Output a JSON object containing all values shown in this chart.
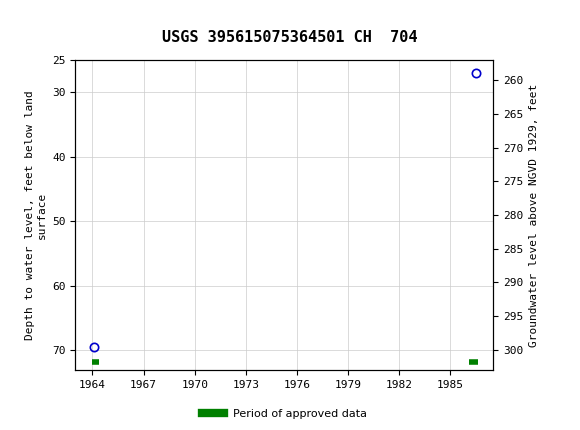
{
  "title": "USGS 395615075364501 CH  704",
  "header_bg_color": "#1a6b3c",
  "header_text_color": "#ffffff",
  "plot_bg_color": "#ffffff",
  "grid_color": "#cccccc",
  "ylabel_left": "Depth to water level, feet below land\nsurface",
  "ylabel_right": "Groundwater level above NGVD 1929, feet",
  "xlim": [
    1963,
    1987.5
  ],
  "ylim_left": [
    25,
    73
  ],
  "ylim_right": [
    257,
    303
  ],
  "xticks": [
    1964,
    1967,
    1970,
    1973,
    1976,
    1979,
    1982,
    1985
  ],
  "yticks_left": [
    25,
    30,
    40,
    50,
    60,
    70
  ],
  "yticks_right": [
    260,
    265,
    270,
    275,
    280,
    285,
    290,
    295,
    300
  ],
  "data_points": [
    {
      "x": 1964.1,
      "y_left": 69.5,
      "color": "#0000cc",
      "marker": "o",
      "fillstyle": "none",
      "markersize": 6
    },
    {
      "x": 1986.5,
      "y_left": 27.0,
      "color": "#0000cc",
      "marker": "o",
      "fillstyle": "none",
      "markersize": 6
    }
  ],
  "approved_segments": [
    {
      "x_start": 1964.0,
      "x_end": 1964.4,
      "y_left": 71.8
    },
    {
      "x_start": 1986.1,
      "x_end": 1986.6,
      "y_left": 71.8
    }
  ],
  "legend_label": "Period of approved data",
  "legend_color": "#008000",
  "font_family": "monospace"
}
